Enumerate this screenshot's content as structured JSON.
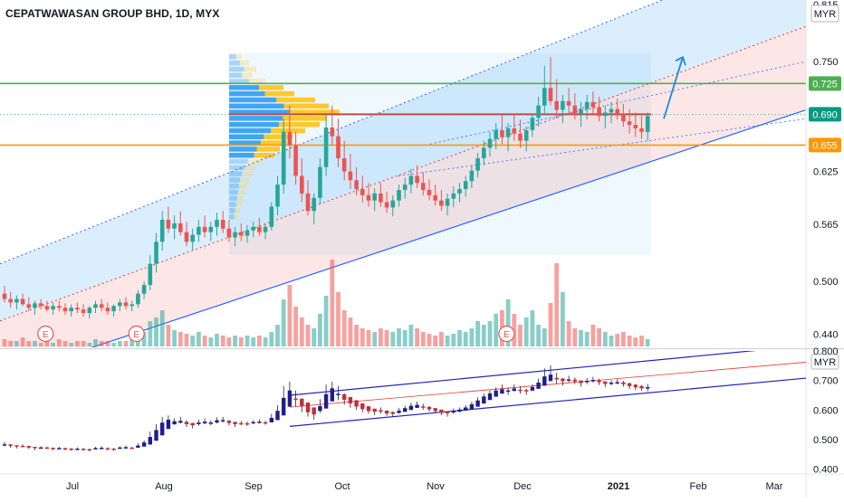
{
  "header": {
    "symbol_title": "CEPATWAWASAN GROUP BHD, 1D, MYX"
  },
  "colors": {
    "up": "#26a69a",
    "down": "#ef5350",
    "up_dark": "#1e1e8c",
    "down_dark": "#c0303a",
    "blue_line": "#2962ff",
    "red_line": "#e53935",
    "green_line": "#4caf50",
    "orange_line": "#ff9800",
    "teal_badge": "#089981",
    "vp_blue": "#2196f3",
    "vp_yellow": "#ffd54f"
  },
  "chart_data": [
    {
      "type": "candlestick",
      "panel": "main",
      "currency_label": "MYR",
      "ylim": [
        0.425,
        0.82
      ],
      "yticks": [
        {
          "value": 0.815,
          "label": "0.815"
        },
        {
          "value": 0.75,
          "label": "0.750"
        },
        {
          "value": 0.625,
          "label": "0.625"
        },
        {
          "value": 0.565,
          "label": "0.565"
        },
        {
          "value": 0.5,
          "label": "0.500"
        },
        {
          "value": 0.44,
          "label": "0.440"
        }
      ],
      "price_badges": [
        {
          "value": 0.725,
          "label": "0.725",
          "color": "#4caf50"
        },
        {
          "value": 0.69,
          "label": "0.690",
          "color": "#089981"
        },
        {
          "value": 0.655,
          "label": "0.655",
          "color": "#ff9800"
        }
      ],
      "horizontal_lines": [
        {
          "value": 0.725,
          "color": "#4caf50"
        },
        {
          "value": 0.69,
          "color": "#e53935"
        },
        {
          "value": 0.655,
          "color": "#ff9800"
        }
      ],
      "earnings_markers": [
        {
          "month_index": 0.3,
          "label": "E"
        },
        {
          "month_index": 1.3,
          "label": "E"
        },
        {
          "month_index": 5.4,
          "label": "E"
        }
      ],
      "projection_arrow": {
        "from_price": 0.685,
        "to_price": 0.755
      },
      "candles": [
        {
          "o": 0.486,
          "h": 0.495,
          "l": 0.476,
          "c": 0.48
        },
        {
          "o": 0.48,
          "h": 0.488,
          "l": 0.47,
          "c": 0.476
        },
        {
          "o": 0.476,
          "h": 0.484,
          "l": 0.468,
          "c": 0.48
        },
        {
          "o": 0.48,
          "h": 0.486,
          "l": 0.472,
          "c": 0.474
        },
        {
          "o": 0.474,
          "h": 0.482,
          "l": 0.466,
          "c": 0.47
        },
        {
          "o": 0.47,
          "h": 0.478,
          "l": 0.462,
          "c": 0.475
        },
        {
          "o": 0.475,
          "h": 0.48,
          "l": 0.468,
          "c": 0.472
        },
        {
          "o": 0.472,
          "h": 0.478,
          "l": 0.466,
          "c": 0.468
        },
        {
          "o": 0.468,
          "h": 0.476,
          "l": 0.462,
          "c": 0.472
        },
        {
          "o": 0.472,
          "h": 0.478,
          "l": 0.466,
          "c": 0.47
        },
        {
          "o": 0.47,
          "h": 0.475,
          "l": 0.462,
          "c": 0.466
        },
        {
          "o": 0.466,
          "h": 0.474,
          "l": 0.46,
          "c": 0.47
        },
        {
          "o": 0.47,
          "h": 0.476,
          "l": 0.464,
          "c": 0.468
        },
        {
          "o": 0.468,
          "h": 0.474,
          "l": 0.46,
          "c": 0.464
        },
        {
          "o": 0.464,
          "h": 0.472,
          "l": 0.458,
          "c": 0.47
        },
        {
          "o": 0.47,
          "h": 0.478,
          "l": 0.464,
          "c": 0.474
        },
        {
          "o": 0.474,
          "h": 0.48,
          "l": 0.466,
          "c": 0.47
        },
        {
          "o": 0.47,
          "h": 0.476,
          "l": 0.462,
          "c": 0.466
        },
        {
          "o": 0.466,
          "h": 0.474,
          "l": 0.46,
          "c": 0.472
        },
        {
          "o": 0.472,
          "h": 0.48,
          "l": 0.466,
          "c": 0.476
        },
        {
          "o": 0.476,
          "h": 0.482,
          "l": 0.468,
          "c": 0.472
        },
        {
          "o": 0.472,
          "h": 0.478,
          "l": 0.466,
          "c": 0.474
        },
        {
          "o": 0.474,
          "h": 0.49,
          "l": 0.47,
          "c": 0.486
        },
        {
          "o": 0.486,
          "h": 0.5,
          "l": 0.48,
          "c": 0.496
        },
        {
          "o": 0.496,
          "h": 0.53,
          "l": 0.49,
          "c": 0.52
        },
        {
          "o": 0.52,
          "h": 0.555,
          "l": 0.51,
          "c": 0.545
        },
        {
          "o": 0.545,
          "h": 0.58,
          "l": 0.535,
          "c": 0.57
        },
        {
          "o": 0.57,
          "h": 0.585,
          "l": 0.555,
          "c": 0.56
        },
        {
          "o": 0.56,
          "h": 0.575,
          "l": 0.548,
          "c": 0.566
        },
        {
          "o": 0.566,
          "h": 0.58,
          "l": 0.552,
          "c": 0.556
        },
        {
          "o": 0.556,
          "h": 0.568,
          "l": 0.54,
          "c": 0.545
        },
        {
          "o": 0.545,
          "h": 0.56,
          "l": 0.535,
          "c": 0.553
        },
        {
          "o": 0.553,
          "h": 0.57,
          "l": 0.545,
          "c": 0.562
        },
        {
          "o": 0.562,
          "h": 0.575,
          "l": 0.55,
          "c": 0.556
        },
        {
          "o": 0.556,
          "h": 0.568,
          "l": 0.546,
          "c": 0.562
        },
        {
          "o": 0.562,
          "h": 0.578,
          "l": 0.552,
          "c": 0.57
        },
        {
          "o": 0.57,
          "h": 0.58,
          "l": 0.555,
          "c": 0.56
        },
        {
          "o": 0.56,
          "h": 0.57,
          "l": 0.545,
          "c": 0.55
        },
        {
          "o": 0.55,
          "h": 0.562,
          "l": 0.54,
          "c": 0.556
        },
        {
          "o": 0.556,
          "h": 0.566,
          "l": 0.546,
          "c": 0.552
        },
        {
          "o": 0.552,
          "h": 0.564,
          "l": 0.544,
          "c": 0.558
        },
        {
          "o": 0.558,
          "h": 0.568,
          "l": 0.55,
          "c": 0.562
        },
        {
          "o": 0.562,
          "h": 0.572,
          "l": 0.552,
          "c": 0.556
        },
        {
          "o": 0.556,
          "h": 0.566,
          "l": 0.548,
          "c": 0.562
        },
        {
          "o": 0.562,
          "h": 0.59,
          "l": 0.558,
          "c": 0.585
        },
        {
          "o": 0.585,
          "h": 0.62,
          "l": 0.575,
          "c": 0.61
        },
        {
          "o": 0.61,
          "h": 0.685,
          "l": 0.6,
          "c": 0.67
        },
        {
          "o": 0.67,
          "h": 0.7,
          "l": 0.64,
          "c": 0.655
        },
        {
          "o": 0.655,
          "h": 0.67,
          "l": 0.61,
          "c": 0.62
        },
        {
          "o": 0.62,
          "h": 0.64,
          "l": 0.59,
          "c": 0.6
        },
        {
          "o": 0.6,
          "h": 0.615,
          "l": 0.575,
          "c": 0.58
        },
        {
          "o": 0.58,
          "h": 0.6,
          "l": 0.565,
          "c": 0.595
        },
        {
          "o": 0.595,
          "h": 0.64,
          "l": 0.588,
          "c": 0.63
        },
        {
          "o": 0.63,
          "h": 0.69,
          "l": 0.62,
          "c": 0.675
        },
        {
          "o": 0.675,
          "h": 0.7,
          "l": 0.655,
          "c": 0.665
        },
        {
          "o": 0.665,
          "h": 0.685,
          "l": 0.63,
          "c": 0.64
        },
        {
          "o": 0.64,
          "h": 0.66,
          "l": 0.615,
          "c": 0.625
        },
        {
          "o": 0.625,
          "h": 0.645,
          "l": 0.605,
          "c": 0.615
        },
        {
          "o": 0.615,
          "h": 0.63,
          "l": 0.598,
          "c": 0.605
        },
        {
          "o": 0.605,
          "h": 0.62,
          "l": 0.59,
          "c": 0.598
        },
        {
          "o": 0.598,
          "h": 0.612,
          "l": 0.585,
          "c": 0.592
        },
        {
          "o": 0.592,
          "h": 0.606,
          "l": 0.58,
          "c": 0.6
        },
        {
          "o": 0.6,
          "h": 0.612,
          "l": 0.585,
          "c": 0.59
        },
        {
          "o": 0.59,
          "h": 0.602,
          "l": 0.578,
          "c": 0.584
        },
        {
          "o": 0.584,
          "h": 0.598,
          "l": 0.574,
          "c": 0.592
        },
        {
          "o": 0.592,
          "h": 0.61,
          "l": 0.585,
          "c": 0.604
        },
        {
          "o": 0.604,
          "h": 0.618,
          "l": 0.594,
          "c": 0.61
        },
        {
          "o": 0.61,
          "h": 0.628,
          "l": 0.6,
          "c": 0.62
        },
        {
          "o": 0.62,
          "h": 0.632,
          "l": 0.606,
          "c": 0.612
        },
        {
          "o": 0.612,
          "h": 0.624,
          "l": 0.598,
          "c": 0.604
        },
        {
          "o": 0.604,
          "h": 0.616,
          "l": 0.592,
          "c": 0.598
        },
        {
          "o": 0.598,
          "h": 0.61,
          "l": 0.586,
          "c": 0.592
        },
        {
          "o": 0.592,
          "h": 0.604,
          "l": 0.58,
          "c": 0.586
        },
        {
          "o": 0.586,
          "h": 0.6,
          "l": 0.575,
          "c": 0.594
        },
        {
          "o": 0.594,
          "h": 0.608,
          "l": 0.584,
          "c": 0.6
        },
        {
          "o": 0.6,
          "h": 0.612,
          "l": 0.59,
          "c": 0.605
        },
        {
          "o": 0.605,
          "h": 0.62,
          "l": 0.596,
          "c": 0.614
        },
        {
          "o": 0.614,
          "h": 0.632,
          "l": 0.606,
          "c": 0.626
        },
        {
          "o": 0.626,
          "h": 0.646,
          "l": 0.618,
          "c": 0.64
        },
        {
          "o": 0.64,
          "h": 0.66,
          "l": 0.632,
          "c": 0.652
        },
        {
          "o": 0.652,
          "h": 0.67,
          "l": 0.642,
          "c": 0.662
        },
        {
          "o": 0.662,
          "h": 0.68,
          "l": 0.65,
          "c": 0.672
        },
        {
          "o": 0.672,
          "h": 0.69,
          "l": 0.656,
          "c": 0.664
        },
        {
          "o": 0.664,
          "h": 0.68,
          "l": 0.648,
          "c": 0.674
        },
        {
          "o": 0.674,
          "h": 0.69,
          "l": 0.66,
          "c": 0.668
        },
        {
          "o": 0.668,
          "h": 0.684,
          "l": 0.652,
          "c": 0.66
        },
        {
          "o": 0.66,
          "h": 0.676,
          "l": 0.648,
          "c": 0.672
        },
        {
          "o": 0.672,
          "h": 0.69,
          "l": 0.664,
          "c": 0.686
        },
        {
          "o": 0.686,
          "h": 0.71,
          "l": 0.676,
          "c": 0.7
        },
        {
          "o": 0.7,
          "h": 0.745,
          "l": 0.69,
          "c": 0.72
        },
        {
          "o": 0.72,
          "h": 0.755,
          "l": 0.7,
          "c": 0.705
        },
        {
          "o": 0.705,
          "h": 0.73,
          "l": 0.685,
          "c": 0.695
        },
        {
          "o": 0.695,
          "h": 0.712,
          "l": 0.68,
          "c": 0.705
        },
        {
          "o": 0.705,
          "h": 0.72,
          "l": 0.69,
          "c": 0.7
        },
        {
          "o": 0.7,
          "h": 0.714,
          "l": 0.684,
          "c": 0.69
        },
        {
          "o": 0.69,
          "h": 0.704,
          "l": 0.676,
          "c": 0.696
        },
        {
          "o": 0.696,
          "h": 0.712,
          "l": 0.684,
          "c": 0.704
        },
        {
          "o": 0.704,
          "h": 0.716,
          "l": 0.69,
          "c": 0.698
        },
        {
          "o": 0.698,
          "h": 0.71,
          "l": 0.682,
          "c": 0.688
        },
        {
          "o": 0.688,
          "h": 0.7,
          "l": 0.674,
          "c": 0.692
        },
        {
          "o": 0.692,
          "h": 0.704,
          "l": 0.68,
          "c": 0.696
        },
        {
          "o": 0.696,
          "h": 0.708,
          "l": 0.684,
          "c": 0.69
        },
        {
          "o": 0.69,
          "h": 0.702,
          "l": 0.676,
          "c": 0.682
        },
        {
          "o": 0.682,
          "h": 0.696,
          "l": 0.668,
          "c": 0.678
        },
        {
          "o": 0.678,
          "h": 0.692,
          "l": 0.664,
          "c": 0.674
        },
        {
          "o": 0.674,
          "h": 0.688,
          "l": 0.662,
          "c": 0.67
        },
        {
          "o": 0.67,
          "h": 0.692,
          "l": 0.66,
          "c": 0.688
        }
      ],
      "volume": [
        4,
        3,
        3,
        5,
        3,
        3,
        2,
        3,
        2,
        4,
        3,
        2,
        3,
        3,
        2,
        4,
        3,
        3,
        2,
        3,
        3,
        4,
        6,
        8,
        14,
        16,
        20,
        12,
        9,
        8,
        7,
        6,
        8,
        6,
        5,
        7,
        6,
        5,
        6,
        5,
        6,
        5,
        6,
        5,
        8,
        12,
        26,
        34,
        22,
        16,
        12,
        10,
        18,
        28,
        48,
        30,
        20,
        16,
        12,
        10,
        9,
        8,
        10,
        9,
        8,
        10,
        9,
        12,
        10,
        8,
        7,
        6,
        8,
        6,
        7,
        9,
        8,
        10,
        14,
        12,
        14,
        18,
        20,
        26,
        18,
        12,
        16,
        20,
        12,
        10,
        24,
        46,
        30,
        14,
        10,
        9,
        8,
        12,
        10,
        8,
        6,
        7,
        8,
        6,
        5,
        6,
        4
      ]
    },
    {
      "type": "heikin-ashi",
      "panel": "lower",
      "currency_label": "MYR",
      "ylim": [
        0.39,
        0.8
      ],
      "yticks": [
        {
          "value": 0.8,
          "label": "0.800"
        },
        {
          "value": 0.7,
          "label": "0.700"
        },
        {
          "value": 0.6,
          "label": "0.600"
        },
        {
          "value": 0.5,
          "label": "0.500"
        },
        {
          "value": 0.4,
          "label": "0.400"
        }
      ]
    }
  ],
  "x_axis": {
    "month_ticks": [
      {
        "label": "Jul",
        "index": 0
      },
      {
        "label": "Aug",
        "index": 1
      },
      {
        "label": "Sep",
        "index": 2
      },
      {
        "label": "Oct",
        "index": 3
      },
      {
        "label": "Nov",
        "index": 4
      },
      {
        "label": "Dec",
        "index": 5
      },
      {
        "label": "2021",
        "index": 6
      },
      {
        "label": "Feb",
        "index": 7
      },
      {
        "label": "Mar",
        "index": 8
      }
    ]
  }
}
